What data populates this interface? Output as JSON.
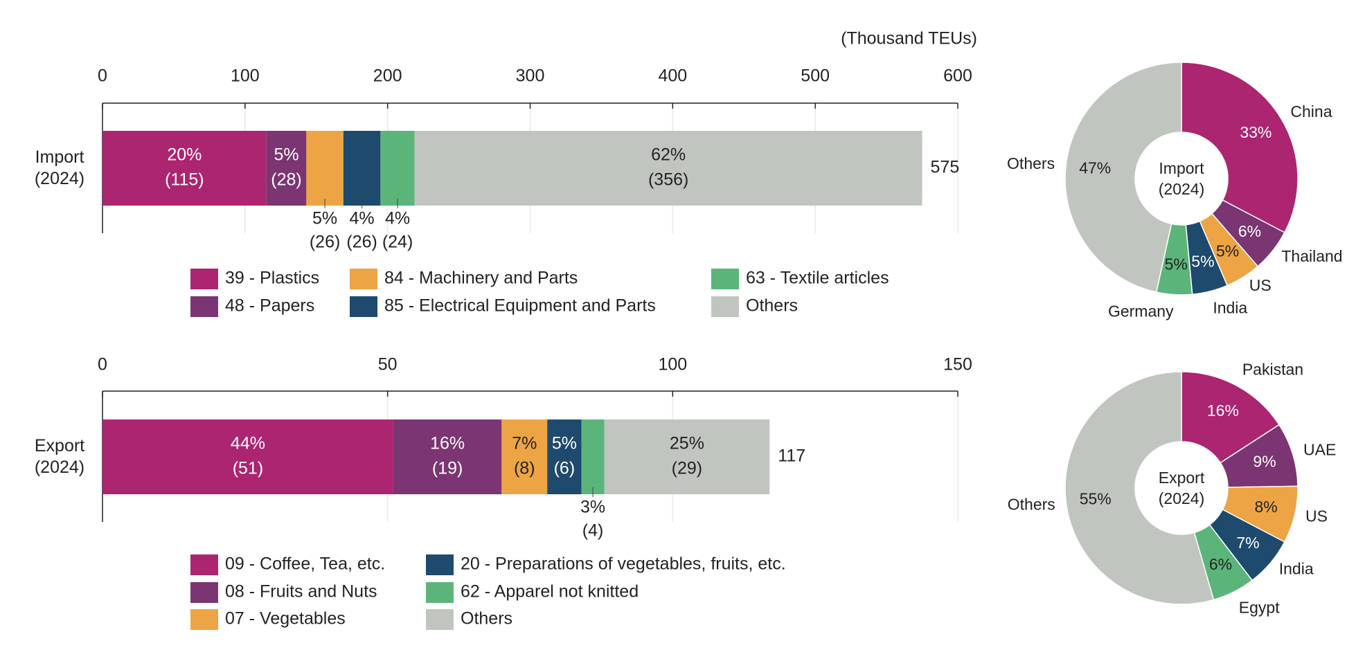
{
  "chart_data": [
    {
      "type": "stacked-bar",
      "unit_label": "(Thousand TEUs)",
      "categories": [
        "Import (2024)"
      ],
      "xlim": [
        0,
        600
      ],
      "xticks": [
        0,
        100,
        200,
        300,
        400,
        500,
        600
      ],
      "grid": true,
      "totals": [
        575
      ],
      "series": [
        {
          "name": "39 - Plastics",
          "color": "#ab2570",
          "values": [
            115
          ],
          "value_labels": [
            "(115)"
          ],
          "percent_labels": [
            "20%"
          ]
        },
        {
          "name": "48 - Papers",
          "color": "#7b3572",
          "values": [
            28
          ],
          "value_labels": [
            "(28)"
          ],
          "percent_labels": [
            "5%"
          ]
        },
        {
          "name": "84 - Machinery and Parts",
          "color": "#eda444",
          "values": [
            26
          ],
          "value_labels": [
            "(26)"
          ],
          "percent_labels": [
            "5%"
          ]
        },
        {
          "name": "85 - Electrical Equipment and Parts",
          "color": "#1e4a6e",
          "values": [
            26
          ],
          "value_labels": [
            "(26)"
          ],
          "percent_labels": [
            "4%"
          ]
        },
        {
          "name": "63 - Textile articles",
          "color": "#5bb57a",
          "values": [
            24
          ],
          "value_labels": [
            "(24)"
          ],
          "percent_labels": [
            "4%"
          ]
        },
        {
          "name": "Others",
          "color": "#c1c5bf",
          "values": [
            356
          ],
          "value_labels": [
            "(356)"
          ],
          "percent_labels": [
            "62%"
          ]
        }
      ]
    },
    {
      "type": "stacked-bar",
      "categories": [
        "Export (2024)"
      ],
      "xlim": [
        0,
        150
      ],
      "xticks": [
        0,
        50,
        100,
        150
      ],
      "grid": true,
      "totals": [
        117
      ],
      "series": [
        {
          "name": "09 - Coffee, Tea, etc.",
          "color": "#ab2570",
          "values": [
            51
          ],
          "value_labels": [
            "(51)"
          ],
          "percent_labels": [
            "44%"
          ]
        },
        {
          "name": "08 - Fruits and Nuts",
          "color": "#7b3572",
          "values": [
            19
          ],
          "value_labels": [
            "(19)"
          ],
          "percent_labels": [
            "16%"
          ]
        },
        {
          "name": "07 - Vegetables",
          "color": "#eda444",
          "values": [
            8
          ],
          "value_labels": [
            "(8)"
          ],
          "percent_labels": [
            "7%"
          ]
        },
        {
          "name": "20 - Preparations of vegetables, fruits, etc.",
          "color": "#1e4a6e",
          "values": [
            6
          ],
          "value_labels": [
            "(6)"
          ],
          "percent_labels": [
            "5%"
          ]
        },
        {
          "name": "62 - Apparel not knitted",
          "color": "#5bb57a",
          "values": [
            4
          ],
          "value_labels": [
            "(4)"
          ],
          "percent_labels": [
            "3%"
          ]
        },
        {
          "name": "Others",
          "color": "#c1c5bf",
          "values": [
            29
          ],
          "value_labels": [
            "(29)"
          ],
          "percent_labels": [
            "25%"
          ]
        }
      ]
    },
    {
      "type": "donut",
      "center_label": "Import (2024)",
      "categories": [
        "China",
        "Thailand",
        "US",
        "India",
        "Germany",
        "Others"
      ],
      "values": [
        33,
        6,
        5,
        5,
        5,
        47
      ],
      "value_labels": [
        "33%",
        "6%",
        "5%",
        "5%",
        "5%",
        "47%"
      ],
      "colors": [
        "#ab2570",
        "#7b3572",
        "#eda444",
        "#1e4a6e",
        "#5bb57a",
        "#c1c5bf"
      ]
    },
    {
      "type": "donut",
      "center_label": "Export (2024)",
      "categories": [
        "Pakistan",
        "UAE",
        "US",
        "India",
        "Egypt",
        "Others"
      ],
      "values": [
        16,
        9,
        8,
        7,
        6,
        55
      ],
      "value_labels": [
        "16%",
        "9%",
        "8%",
        "7%",
        "6%",
        "55%"
      ],
      "colors": [
        "#ab2570",
        "#7b3572",
        "#eda444",
        "#1e4a6e",
        "#5bb57a",
        "#c1c5bf"
      ]
    }
  ]
}
